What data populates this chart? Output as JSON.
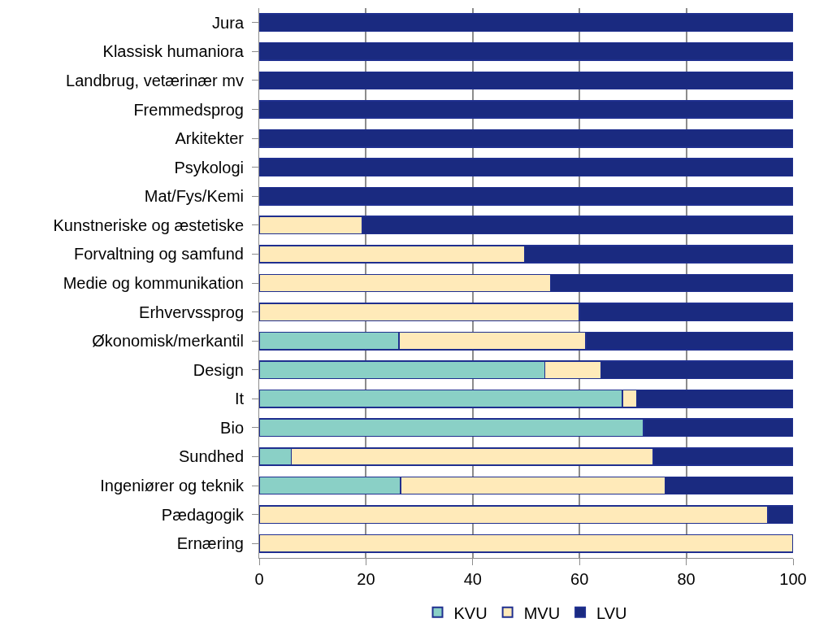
{
  "chart_data": {
    "type": "bar",
    "orientation": "horizontal",
    "stacked": true,
    "categories": [
      "Jura",
      "Klassisk humaniora",
      "Landbrug, vetærinær mv",
      "Fremmedsprog",
      "Arkitekter",
      "Psykologi",
      "Mat/Fys/Kemi",
      "Kunstneriske og æstetiske",
      "Forvaltning og samfund",
      "Medie og kommunikation",
      "Erhvervssprog",
      "Økonomisk/merkantil",
      "Design",
      "It",
      "Bio",
      "Sundhed",
      "Ingeniører og teknik",
      "Pædagogik",
      "Ernæring"
    ],
    "series": [
      {
        "name": "KVU",
        "color": "#8ad0c6",
        "values": [
          0,
          0,
          0,
          0,
          0,
          0,
          0,
          0,
          0,
          0,
          0,
          26.2,
          53.5,
          68,
          72,
          6,
          26.5,
          0,
          0
        ]
      },
      {
        "name": "MVU",
        "color": "#ffeab9",
        "values": [
          0,
          0,
          0,
          0,
          0,
          0,
          0,
          19.3,
          49.7,
          54.6,
          60,
          35,
          10.5,
          2.7,
          0,
          67.8,
          49.5,
          95.3,
          100
        ]
      },
      {
        "name": "LVU",
        "color": "#1a2a80",
        "values": [
          100,
          100,
          100,
          100,
          100,
          100,
          100,
          80.7,
          50.3,
          45.4,
          40,
          38.8,
          36,
          29.3,
          28,
          26.2,
          24,
          4.7,
          0
        ]
      }
    ],
    "xlim": [
      0,
      100
    ],
    "xticks": [
      0,
      20,
      40,
      60,
      80,
      100
    ],
    "grid": "x",
    "legend": "bottom"
  }
}
